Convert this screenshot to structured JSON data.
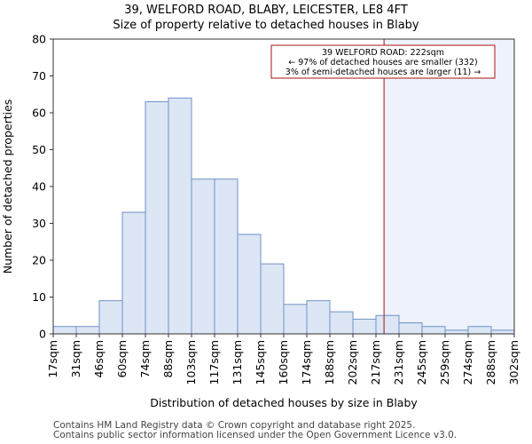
{
  "chart_data": {
    "type": "bar",
    "title": "39, WELFORD ROAD, BLABY, LEICESTER, LE8 4FT",
    "subtitle": "Size of property relative to detached houses in Blaby",
    "xlabel": "Distribution of detached houses by size in Blaby",
    "ylabel": "Number of detached properties",
    "ylim": [
      0,
      80
    ],
    "yticks": [
      0,
      10,
      20,
      30,
      40,
      50,
      60,
      70,
      80
    ],
    "tick_labels": [
      "17sqm",
      "31sqm",
      "46sqm",
      "60sqm",
      "74sqm",
      "88sqm",
      "103sqm",
      "117sqm",
      "131sqm",
      "145sqm",
      "160sqm",
      "174sqm",
      "188sqm",
      "202sqm",
      "217sqm",
      "231sqm",
      "245sqm",
      "259sqm",
      "274sqm",
      "288sqm",
      "302sqm"
    ],
    "values": [
      2,
      2,
      9,
      33,
      63,
      64,
      42,
      42,
      27,
      19,
      8,
      9,
      6,
      4,
      5,
      3,
      2,
      1,
      2,
      1
    ],
    "grid": false,
    "marker": {
      "value_sqm": 222,
      "bin_position": 14.35
    },
    "annotation": {
      "lines": [
        "39 WELFORD ROAD: 222sqm",
        "← 97% of detached houses are smaller (332)",
        "3% of semi-detached houses are larger (11) →"
      ],
      "placement": "top-right"
    },
    "colors": {
      "bar_fill": "#dce6f4",
      "bar_edge": "#6f91c8",
      "marker": "#aa1111",
      "shade": "#eef2fb"
    }
  },
  "footer": {
    "line1": "Contains HM Land Registry data © Crown copyright and database right 2025.",
    "line2": "Contains public sector information licensed under the Open Government Licence v3.0."
  }
}
